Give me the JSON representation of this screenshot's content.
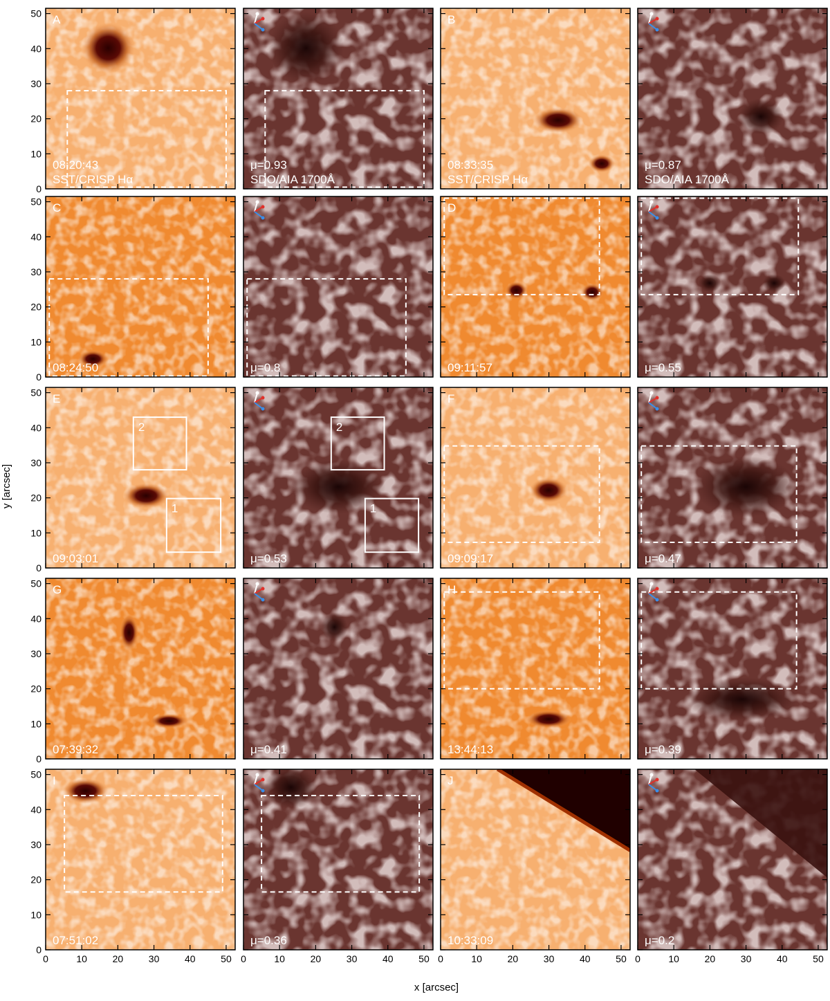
{
  "figure": {
    "xlabel": "x [arcsec]",
    "ylabel": "y [arcsec]",
    "xlim": [
      0,
      52.5
    ],
    "ylim": [
      0,
      51.5
    ],
    "xticks": [
      0,
      10,
      20,
      30,
      40,
      50
    ],
    "yticks": [
      0,
      10,
      20,
      30,
      40,
      50
    ],
    "panels": [
      {
        "kind": "crisp",
        "label": "A",
        "time": "08:20:43",
        "instrument": "SST/CRISP Hα",
        "dashed_boxes": [
          [
            6,
            0.5,
            50,
            28
          ]
        ]
      },
      {
        "kind": "aia",
        "mu": "μ=0.93",
        "instrument": "SDO/AIA 1700Å",
        "dashed_boxes": [
          [
            6,
            0.5,
            50,
            28
          ]
        ]
      },
      {
        "kind": "crisp",
        "label": "B",
        "time": "08:33:35",
        "instrument": "SST/CRISP Hα"
      },
      {
        "kind": "aia",
        "mu": "μ=0.87",
        "instrument": "SDO/AIA 1700Å"
      },
      {
        "kind": "crisp",
        "label": "C",
        "time": "08:24:50",
        "dashed_boxes": [
          [
            1,
            0.3,
            45,
            28
          ]
        ]
      },
      {
        "kind": "aia",
        "mu": "μ=0.8",
        "dashed_boxes": [
          [
            1,
            0.3,
            45,
            28
          ]
        ]
      },
      {
        "kind": "crisp",
        "label": "D",
        "time": "09:11:57",
        "dashed_boxes": [
          [
            1,
            23.5,
            44,
            51
          ]
        ]
      },
      {
        "kind": "aia",
        "mu": "μ=0.55",
        "dashed_boxes": [
          [
            1,
            23.5,
            44.5,
            51
          ]
        ]
      },
      {
        "kind": "crisp",
        "label": "E",
        "time": "09:03:01",
        "solid_boxes": [
          {
            "label": "2",
            "box": [
              24.3,
              28,
              39,
              43
            ]
          },
          {
            "label": "1",
            "box": [
              33.5,
              4.5,
              48.5,
              19.8
            ]
          }
        ]
      },
      {
        "kind": "aia",
        "mu": "μ=0.53",
        "solid_boxes": [
          {
            "label": "2",
            "box": [
              24.3,
              28,
              39,
              43
            ]
          },
          {
            "label": "1",
            "box": [
              33.7,
              4.5,
              48.5,
              19.8
            ]
          }
        ]
      },
      {
        "kind": "crisp",
        "label": "F",
        "time": "09:09:17",
        "dashed_boxes": [
          [
            1,
            7.3,
            44,
            34.8
          ]
        ]
      },
      {
        "kind": "aia",
        "mu": "μ=0.47",
        "dashed_boxes": [
          [
            1,
            7.3,
            44,
            34.8
          ]
        ]
      },
      {
        "kind": "crisp",
        "label": "G",
        "time": "07:39:32"
      },
      {
        "kind": "aia",
        "mu": "μ=0.41"
      },
      {
        "kind": "crisp",
        "label": "H",
        "time": "13:44:13",
        "dashed_boxes": [
          [
            1,
            20,
            44,
            47.6
          ]
        ]
      },
      {
        "kind": "aia",
        "mu": "μ=0.39",
        "dashed_boxes": [
          [
            1,
            20,
            44,
            47.6
          ]
        ]
      },
      {
        "kind": "crisp",
        "label": "I",
        "time": "07:51:02",
        "dashed_boxes": [
          [
            5.2,
            16.5,
            49,
            44
          ]
        ]
      },
      {
        "kind": "aia",
        "mu": "μ=0.36",
        "dashed_boxes": [
          [
            5,
            16.5,
            48.7,
            44
          ]
        ]
      },
      {
        "kind": "crisp",
        "label": "J",
        "time": "10:33:09"
      },
      {
        "kind": "aia",
        "mu": "μ=0.2"
      }
    ]
  }
}
